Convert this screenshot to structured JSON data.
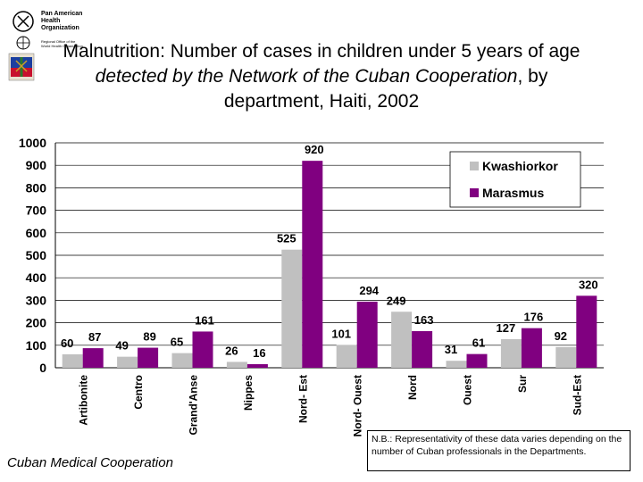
{
  "header": {
    "org_lines": "Pan American\nHealth\nOrganization",
    "org_sub": "Regional Office of the\nWorld Health Organization"
  },
  "chart_data": {
    "type": "bar",
    "title_parts": [
      {
        "text": "Malnutrition: Number of cases in children under 5 years of age ",
        "italic": false
      },
      {
        "text": "detected by the Network of the Cuban Cooperation",
        "italic": true
      },
      {
        "text": ", by department, Haiti, 2002",
        "italic": false
      }
    ],
    "categories": [
      "Artibonite",
      "Centro",
      "Grand'Anse",
      "Nippes",
      "Nord- Est",
      "Nord- Ouest",
      "Nord",
      "Ouest",
      "Sur",
      "Sud-Est"
    ],
    "series": [
      {
        "name": "Kwashiorkor",
        "color": "#c0c0c0",
        "values": [
          60,
          49,
          65,
          26,
          525,
          101,
          249,
          31,
          127,
          92
        ]
      },
      {
        "name": "Marasmus",
        "color": "#800080",
        "values": [
          87,
          89,
          161,
          16,
          920,
          294,
          163,
          61,
          176,
          320
        ]
      }
    ],
    "ylim": [
      0,
      1000
    ],
    "yticks": [
      0,
      100,
      200,
      300,
      400,
      500,
      600,
      700,
      800,
      900,
      1000
    ],
    "legend_position": "top-right",
    "grid": true
  },
  "footer": {
    "source": "Cuban Medical Cooperation",
    "note": "N.B.: Representativity of these data varies depending on the number of Cuban professionals in the Departments."
  }
}
